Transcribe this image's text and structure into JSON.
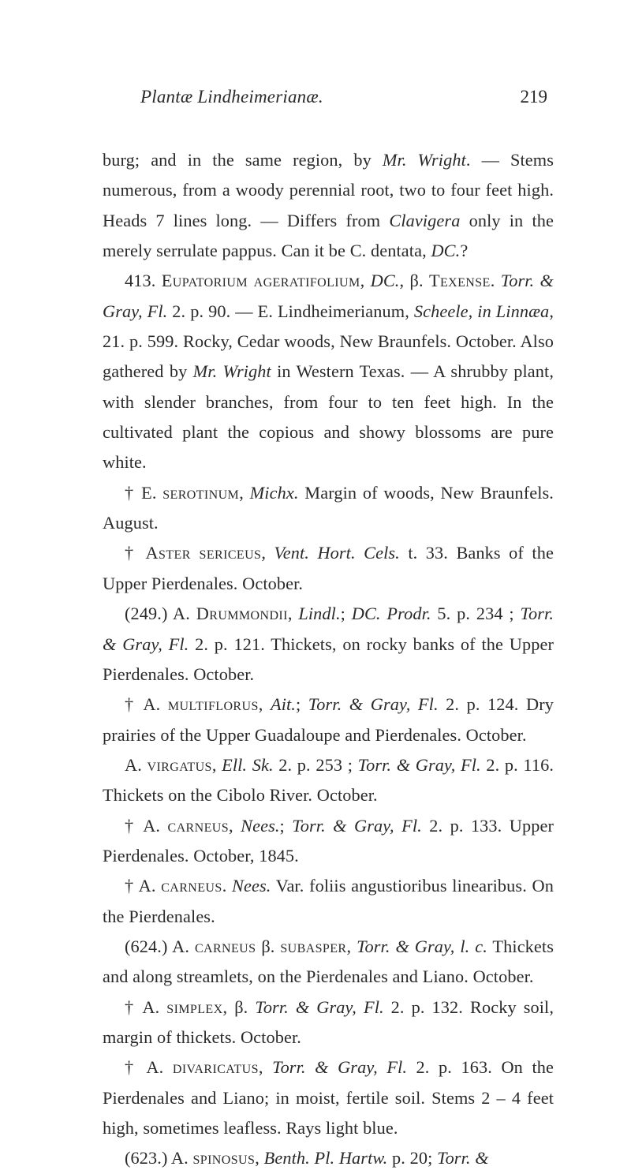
{
  "header": {
    "running_title": "Plantæ Lindheimerianæ.",
    "page_number": "219"
  },
  "paragraphs": [
    "burg; and in the same region, by <span class='it'>Mr. Wright</span>. — Stems numerous, from a woody perennial root, two to four feet high. Heads 7 lines long. — Differs from <span class='it'>Clavigera</span> only in the merely serrulate pappus. Can it be C. dentata, <span class='it'>DC.</span>?",
    "413. <span class='sc'>Eupatorium ageratifolium</span>, <span class='it'>DC.</span>, β. <span class='sc'>Texense</span>. <span class='it'>Torr. &amp; Gray, Fl.</span> 2. p. 90. — E. Lindheimerianum, <span class='it'>Scheele, in Linnæa</span>, 21. p. 599. Rocky, Cedar woods, New Braun­fels. October. Also gathered by <span class='it'>Mr. Wright</span> in Western Texas. — A shrubby plant, with slender branches, from four to ten feet high. In the cultivated plant the copious and showy blossoms are pure white.",
    "† E. <span class='sc'>serotinum</span>, <span class='it'>Michx.</span> Margin of woods, New Braun­fels. August.",
    "† <span class='sc'>Aster sericeus</span>, <span class='it'>Vent. Hort. Cels.</span> t. 33. Banks of the Upper Pierdenales. October.",
    "(249.) A. <span class='sc'>Drummondii</span>, <span class='it'>Lindl.</span>; <span class='it'>DC. Prodr.</span> 5. p. 234 ; <span class='it'>Torr. &amp; Gray, Fl.</span> 2. p. 121. Thickets, on rocky banks of the Upper Pierdenales. October.",
    "† A. <span class='sc'>multiflorus</span>, <span class='it'>Ait.</span>; <span class='it'>Torr. &amp; Gray, Fl.</span> 2. p. 124. Dry prairies of the Upper Guadaloupe and Pierdenales. Oc­tober.",
    "A. <span class='sc'>virgatus</span>, <span class='it'>Ell. Sk.</span> 2. p. 253 ; <span class='it'>Torr. &amp; Gray, Fl.</span> 2. p. 116. Thickets on the Cibolo River. October.",
    "† A. <span class='sc'>carneus</span>, <span class='it'>Nees.</span>; <span class='it'>Torr. &amp; Gray, Fl.</span> 2. p. 133. Up­per Pierdenales. October, 1845.",
    "† A. <span class='sc'>carneus</span>. <span class='it'>Nees.</span> Var. foliis angustioribus linearibus. On the Pierdenales.",
    "(624.) A. <span class='sc'>carneus</span> β. <span class='sc'>subasper</span>, <span class='it'>Torr. &amp; Gray, l. c.</span> Thickets and along streamlets, on the Pierdenales and Liano. October.",
    "† A. <span class='sc'>simplex</span>, β. <span class='it'>Torr. &amp; Gray, Fl.</span> 2. p. 132. Rocky soil, margin of thickets. October.",
    "† A. <span class='sc'>divaricatus</span>, <span class='it'>Torr. &amp; Gray, Fl.</span> 2. p. 163. On the Pierdenales and Liano; in moist, fertile soil. Stems 2 – 4 feet high, sometimes leafless. Rays light blue.",
    "(623.) A. <span class='sc'>spinosus</span>, <span class='it'>Benth. Pl. Hartw.</span> p. 20; <span class='it'>Torr. &amp;</span>"
  ]
}
